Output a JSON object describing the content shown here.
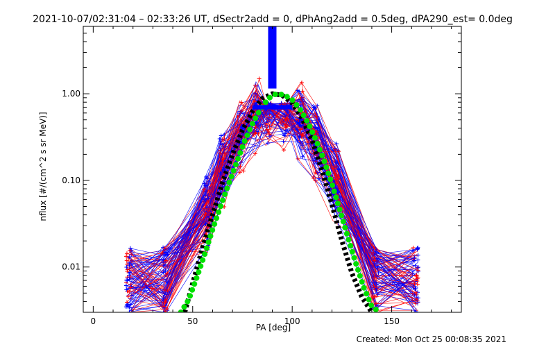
{
  "chart_data": {
    "type": "line",
    "title": "2021-10-07/02:31:04 – 02:33:26 UT, dSectr2add = 0, dPhAng2add = 0.5deg, dPA290_est=  0.0deg",
    "xlabel": "PA [deg]",
    "ylabel": "nflux [#/(cm^2 s sr MeV)]",
    "xlim": [
      -5,
      185
    ],
    "ylim": [
      0.003,
      6
    ],
    "yscale": "log",
    "grid": false,
    "x_ticks": [
      {
        "value": 0,
        "label": "0"
      },
      {
        "value": 50,
        "label": "50"
      },
      {
        "value": 100,
        "label": "100"
      },
      {
        "value": 150,
        "label": "150"
      }
    ],
    "y_ticks": [
      {
        "value": 0.01,
        "label": "0.01"
      },
      {
        "value": 0.1,
        "label": "0.10"
      },
      {
        "value": 1,
        "label": "1.00"
      }
    ],
    "colors": {
      "blue": "#0000ff",
      "red": "#ff0000",
      "green": "#00e000",
      "black": "#000000"
    },
    "series": [
      {
        "color": "#000000",
        "style": "dashed-thick",
        "x": [
          46,
          50,
          55,
          60,
          65,
          70,
          75,
          80,
          85,
          90,
          95,
          100,
          105,
          110,
          115,
          120,
          125,
          130,
          135,
          140
        ],
        "y": [
          0.003,
          0.0065,
          0.017,
          0.04,
          0.095,
          0.2,
          0.38,
          0.62,
          0.88,
          1.0,
          0.96,
          0.78,
          0.52,
          0.29,
          0.13,
          0.052,
          0.02,
          0.0085,
          0.0045,
          0.003
        ]
      },
      {
        "color": "#00e000",
        "style": "dotted-thick",
        "x": [
          44,
          48,
          52,
          56,
          60,
          64,
          68,
          72,
          76,
          80,
          84,
          88,
          92,
          96,
          100,
          104,
          108,
          112,
          116,
          120,
          124,
          128,
          132,
          136,
          140,
          144
        ],
        "y": [
          0.003,
          0.0042,
          0.0075,
          0.014,
          0.027,
          0.05,
          0.09,
          0.16,
          0.28,
          0.45,
          0.66,
          0.88,
          1.0,
          0.97,
          0.85,
          0.66,
          0.46,
          0.29,
          0.17,
          0.09,
          0.045,
          0.022,
          0.011,
          0.0058,
          0.0035,
          0.003
        ]
      },
      {
        "color": "#0000ff",
        "style": "bar",
        "x": [
          90,
          90
        ],
        "y": [
          1.15,
          6
        ]
      }
    ],
    "footer": "Created: Mon Oct 25 00:08:35 2021"
  }
}
